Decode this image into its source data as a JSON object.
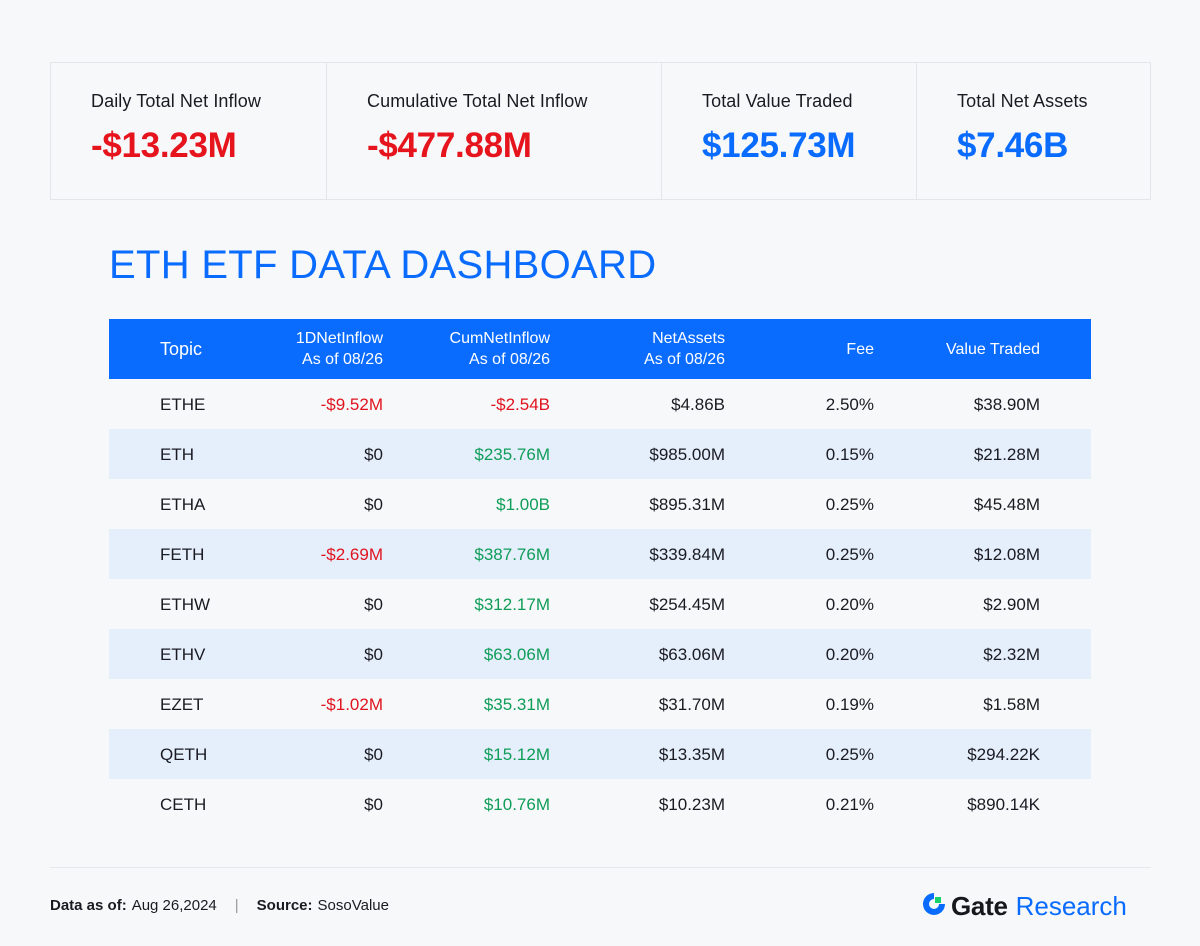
{
  "stats": [
    {
      "label": "Daily Total Net Inflow",
      "value": "-$13.23M",
      "tone": "red"
    },
    {
      "label": "Cumulative Total Net Inflow",
      "value": "-$477.88M",
      "tone": "red"
    },
    {
      "label": "Total Value Traded",
      "value": "$125.73M",
      "tone": "blue"
    },
    {
      "label": "Total Net Assets",
      "value": "$7.46B",
      "tone": "blue"
    }
  ],
  "title": "ETH ETF DATA DASHBOARD",
  "table": {
    "headers": [
      {
        "line1": "Topic",
        "line2": ""
      },
      {
        "line1": "1DNetInflow",
        "line2": "As of 08/26"
      },
      {
        "line1": "CumNetInflow",
        "line2": "As of 08/26"
      },
      {
        "line1": "NetAssets",
        "line2": "As of 08/26"
      },
      {
        "line1": "Fee",
        "line2": ""
      },
      {
        "line1": "Value Traded",
        "line2": ""
      }
    ],
    "rows": [
      {
        "topic": "ETHE",
        "inflow_1d": "-$9.52M",
        "inflow_1d_tone": "neg",
        "cum_inflow": "-$2.54B",
        "cum_inflow_tone": "neg",
        "net_assets": "$4.86B",
        "fee": "2.50%",
        "value_traded": "$38.90M"
      },
      {
        "topic": "ETH",
        "inflow_1d": "$0",
        "inflow_1d_tone": "neu",
        "cum_inflow": "$235.76M",
        "cum_inflow_tone": "pos",
        "net_assets": "$985.00M",
        "fee": "0.15%",
        "value_traded": "$21.28M"
      },
      {
        "topic": "ETHA",
        "inflow_1d": "$0",
        "inflow_1d_tone": "neu",
        "cum_inflow": "$1.00B",
        "cum_inflow_tone": "pos",
        "net_assets": "$895.31M",
        "fee": "0.25%",
        "value_traded": "$45.48M"
      },
      {
        "topic": "FETH",
        "inflow_1d": "-$2.69M",
        "inflow_1d_tone": "neg",
        "cum_inflow": "$387.76M",
        "cum_inflow_tone": "pos",
        "net_assets": "$339.84M",
        "fee": "0.25%",
        "value_traded": "$12.08M"
      },
      {
        "topic": "ETHW",
        "inflow_1d": "$0",
        "inflow_1d_tone": "neu",
        "cum_inflow": "$312.17M",
        "cum_inflow_tone": "pos",
        "net_assets": "$254.45M",
        "fee": "0.20%",
        "value_traded": "$2.90M"
      },
      {
        "topic": "ETHV",
        "inflow_1d": "$0",
        "inflow_1d_tone": "neu",
        "cum_inflow": "$63.06M",
        "cum_inflow_tone": "pos",
        "net_assets": "$63.06M",
        "fee": "0.20%",
        "value_traded": "$2.32M"
      },
      {
        "topic": "EZET",
        "inflow_1d": "-$1.02M",
        "inflow_1d_tone": "neg",
        "cum_inflow": "$35.31M",
        "cum_inflow_tone": "pos",
        "net_assets": "$31.70M",
        "fee": "0.19%",
        "value_traded": "$1.58M"
      },
      {
        "topic": "QETH",
        "inflow_1d": "$0",
        "inflow_1d_tone": "neu",
        "cum_inflow": "$15.12M",
        "cum_inflow_tone": "pos",
        "net_assets": "$13.35M",
        "fee": "0.25%",
        "value_traded": "$294.22K"
      },
      {
        "topic": "CETH",
        "inflow_1d": "$0",
        "inflow_1d_tone": "neu",
        "cum_inflow": "$10.76M",
        "cum_inflow_tone": "pos",
        "net_assets": "$10.23M",
        "fee": "0.21%",
        "value_traded": "$890.14K"
      }
    ]
  },
  "footer": {
    "date_label": "Data as of:",
    "date_value": "Aug 26,2024",
    "separator": "|",
    "source_label": "Source:",
    "source_value": "SosoValue"
  },
  "brand": {
    "icon": "gate-logo-icon",
    "name": "Gate",
    "suffix": "Research"
  },
  "colors": {
    "accent_blue": "#0a6cff",
    "negative_red": "#e0141e",
    "positive_green": "#0f9d58",
    "row_alt": "#e5eefb",
    "background": "#f7f8fa"
  }
}
